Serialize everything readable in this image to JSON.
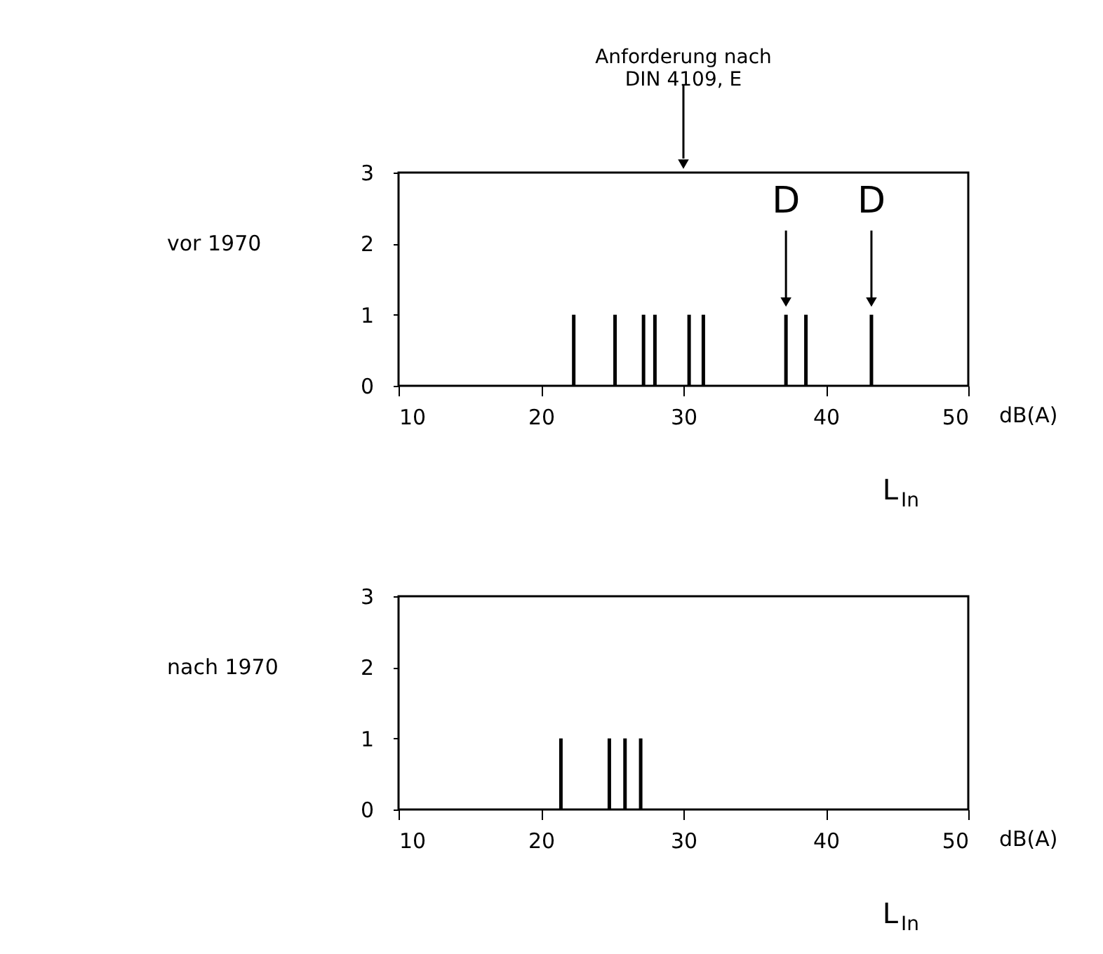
{
  "chart_data": [
    {
      "type": "bar",
      "title": "vor 1970",
      "xlabel": "L$_{In}$",
      "color": "#000000",
      "x": [
        22.3,
        25.2,
        27.2,
        28.0,
        30.4,
        31.4,
        37.2,
        38.6,
        43.2
      ],
      "values": [
        1,
        1,
        1,
        1,
        1,
        1,
        1,
        1,
        1
      ],
      "xlim": [
        10,
        50
      ],
      "xticks": [
        10,
        20,
        30,
        40,
        50
      ],
      "ylim": [
        0,
        3
      ],
      "yticks": [
        0,
        1,
        2,
        3
      ],
      "grid": false,
      "annotations": [
        "dB(A)",
        "Anforderung nach\nDIN 4109, E",
        {
          "text": "D",
          "x": 37.2,
          "y": 1
        },
        {
          "text": "D",
          "x": 43.2,
          "y": 1
        }
      ]
    },
    {
      "type": "bar",
      "title": "nach 1970",
      "xlabel": "L$_{In}$",
      "color": "#000000",
      "x": [
        21.4,
        24.8,
        25.9,
        27.0
      ],
      "values": [
        1,
        1,
        1,
        1
      ],
      "xlim": [
        10,
        50
      ],
      "xticks": [
        10,
        20,
        30,
        40,
        50
      ],
      "ylim": [
        0,
        3
      ],
      "yticks": [
        0,
        1,
        2,
        3
      ],
      "grid": false,
      "annotations": [
        "dB(A)"
      ]
    }
  ]
}
